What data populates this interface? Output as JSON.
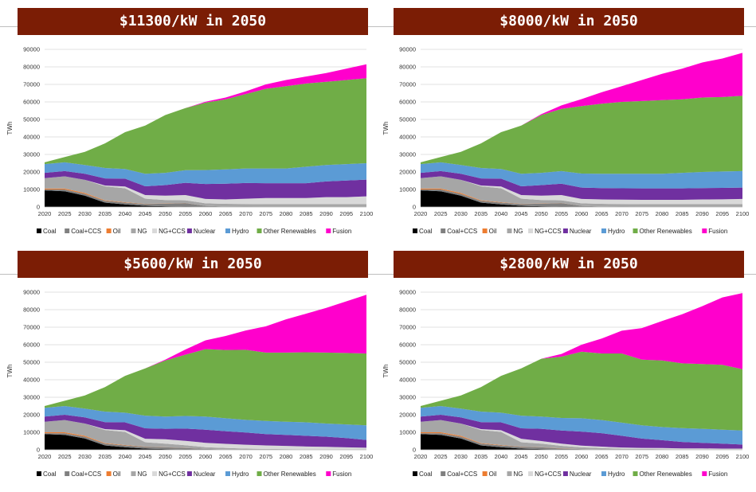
{
  "chart_data": [
    {
      "type": "area",
      "stacked": true,
      "title": "$11300/kW in 2050",
      "ylabel": "TWh",
      "ylim": [
        0,
        90000
      ],
      "yticks": [
        0,
        10000,
        20000,
        30000,
        40000,
        50000,
        60000,
        70000,
        80000,
        90000
      ],
      "x": [
        2020,
        2025,
        2030,
        2035,
        2040,
        2045,
        2050,
        2055,
        2060,
        2065,
        2070,
        2075,
        2080,
        2085,
        2090,
        2095,
        2100
      ],
      "legend_position": "bottom",
      "series": [
        {
          "name": "Coal",
          "color": "#000000",
          "values": [
            9500,
            9000,
            6500,
            2500,
            1500,
            700,
            400,
            200,
            100,
            0,
            0,
            0,
            0,
            0,
            0,
            0,
            0
          ]
        },
        {
          "name": "Coal+CCS",
          "color": "#808080",
          "values": [
            500,
            1000,
            1000,
            1000,
            1000,
            1000,
            1500,
            2000,
            500,
            300,
            200,
            100,
            100,
            100,
            100,
            100,
            100
          ]
        },
        {
          "name": "Oil",
          "color": "#ed7d31",
          "values": [
            500,
            500,
            500,
            300,
            200,
            100,
            100,
            100,
            0,
            0,
            0,
            0,
            0,
            0,
            0,
            0,
            0
          ]
        },
        {
          "name": "NG",
          "color": "#a6a6a6",
          "values": [
            6000,
            7000,
            7500,
            8000,
            8000,
            3000,
            2000,
            1500,
            1500,
            1500,
            1500,
            1500,
            1500,
            1500,
            1500,
            1500,
            1500
          ]
        },
        {
          "name": "NG+CCS",
          "color": "#d9d9d9",
          "values": [
            0,
            0,
            0,
            500,
            1000,
            2000,
            2500,
            3000,
            2500,
            2500,
            3000,
            3500,
            3500,
            3500,
            4000,
            4000,
            4500
          ]
        },
        {
          "name": "Nuclear",
          "color": "#7030a0",
          "values": [
            3000,
            3000,
            3500,
            4000,
            4500,
            5000,
            6000,
            7000,
            8500,
            9000,
            9000,
            8500,
            8500,
            8500,
            9000,
            9500,
            9500
          ]
        },
        {
          "name": "Hydro",
          "color": "#5b9bd5",
          "values": [
            5000,
            5000,
            5000,
            6000,
            5500,
            7200,
            7000,
            7200,
            8000,
            8200,
            8300,
            8400,
            8400,
            9400,
            9400,
            9400,
            9400
          ]
        },
        {
          "name": "Other Renewables",
          "color": "#70ad47",
          "values": [
            1000,
            3000,
            7500,
            14000,
            21000,
            27500,
            33000,
            35500,
            38500,
            40000,
            42500,
            45500,
            47000,
            47500,
            47500,
            48000,
            48500
          ]
        },
        {
          "name": "Fusion",
          "color": "#ff00cc",
          "values": [
            0,
            0,
            0,
            0,
            0,
            0,
            0,
            0,
            500,
            1000,
            1500,
            2500,
            3500,
            4000,
            5000,
            6500,
            8000
          ]
        }
      ]
    },
    {
      "type": "area",
      "stacked": true,
      "title": "$8000/kW in 2050",
      "ylabel": "TWh",
      "ylim": [
        0,
        90000
      ],
      "yticks": [
        0,
        10000,
        20000,
        30000,
        40000,
        50000,
        60000,
        70000,
        80000,
        90000
      ],
      "x": [
        2020,
        2025,
        2030,
        2035,
        2040,
        2045,
        2050,
        2055,
        2060,
        2065,
        2070,
        2075,
        2080,
        2085,
        2090,
        2095,
        2100
      ],
      "legend_position": "bottom",
      "series": [
        {
          "name": "Coal",
          "color": "#000000",
          "values": [
            9500,
            9000,
            6500,
            2500,
            1500,
            700,
            400,
            200,
            100,
            0,
            0,
            0,
            0,
            0,
            0,
            0,
            0
          ]
        },
        {
          "name": "Coal+CCS",
          "color": "#808080",
          "values": [
            500,
            1000,
            1000,
            1000,
            1000,
            1000,
            1500,
            2000,
            500,
            300,
            200,
            100,
            100,
            100,
            100,
            100,
            100
          ]
        },
        {
          "name": "Oil",
          "color": "#ed7d31",
          "values": [
            500,
            500,
            500,
            300,
            200,
            100,
            100,
            100,
            0,
            0,
            0,
            0,
            0,
            0,
            0,
            0,
            0
          ]
        },
        {
          "name": "NG",
          "color": "#a6a6a6",
          "values": [
            6000,
            7000,
            7500,
            8000,
            8000,
            3000,
            2000,
            1500,
            1500,
            1500,
            1500,
            1500,
            1500,
            1500,
            1500,
            1500,
            1500
          ]
        },
        {
          "name": "NG+CCS",
          "color": "#d9d9d9",
          "values": [
            0,
            0,
            0,
            500,
            1000,
            2000,
            2500,
            3000,
            2500,
            2500,
            2500,
            2500,
            2500,
            2500,
            2700,
            2800,
            3000
          ]
        },
        {
          "name": "Nuclear",
          "color": "#7030a0",
          "values": [
            3000,
            3000,
            3500,
            4000,
            4500,
            5000,
            6000,
            6500,
            6500,
            6500,
            6500,
            6500,
            6500,
            6500,
            6500,
            6500,
            6500
          ]
        },
        {
          "name": "Hydro",
          "color": "#5b9bd5",
          "values": [
            5000,
            5000,
            5000,
            6000,
            5500,
            7200,
            7000,
            7200,
            8000,
            8200,
            8300,
            8400,
            8400,
            8900,
            9200,
            9400,
            9400
          ]
        },
        {
          "name": "Other Renewables",
          "color": "#70ad47",
          "values": [
            1000,
            3000,
            7500,
            14000,
            21000,
            27500,
            33000,
            35500,
            38500,
            40000,
            41000,
            41500,
            42000,
            42000,
            42500,
            42500,
            43000
          ]
        },
        {
          "name": "Fusion",
          "color": "#ff00cc",
          "values": [
            0,
            0,
            0,
            0,
            0,
            0,
            500,
            2000,
            4000,
            6500,
            9000,
            12000,
            15000,
            17500,
            20000,
            22000,
            24500
          ]
        }
      ]
    },
    {
      "type": "area",
      "stacked": true,
      "title": "$5600/kW in 2050",
      "ylabel": "TWh",
      "ylim": [
        0,
        90000
      ],
      "yticks": [
        0,
        10000,
        20000,
        30000,
        40000,
        50000,
        60000,
        70000,
        80000,
        90000
      ],
      "x": [
        2020,
        2025,
        2030,
        2035,
        2040,
        2045,
        2050,
        2055,
        2060,
        2065,
        2070,
        2075,
        2080,
        2085,
        2090,
        2095,
        2100
      ],
      "legend_position": "bottom",
      "series": [
        {
          "name": "Coal",
          "color": "#000000",
          "values": [
            9000,
            8500,
            6500,
            2500,
            1500,
            700,
            400,
            200,
            100,
            0,
            0,
            0,
            0,
            0,
            0,
            0,
            0
          ]
        },
        {
          "name": "Coal+CCS",
          "color": "#808080",
          "values": [
            500,
            1000,
            1000,
            1000,
            1000,
            1000,
            1000,
            800,
            400,
            300,
            200,
            100,
            100,
            100,
            100,
            100,
            100
          ]
        },
        {
          "name": "Oil",
          "color": "#ed7d31",
          "values": [
            500,
            500,
            500,
            300,
            200,
            100,
            100,
            100,
            0,
            0,
            0,
            0,
            0,
            0,
            0,
            0,
            0
          ]
        },
        {
          "name": "NG",
          "color": "#a6a6a6",
          "values": [
            6000,
            7000,
            7000,
            7500,
            7500,
            2500,
            2000,
            1500,
            1000,
            800,
            500,
            400,
            300,
            200,
            200,
            100,
            100
          ]
        },
        {
          "name": "NG+CCS",
          "color": "#d9d9d9",
          "values": [
            0,
            0,
            0,
            500,
            1000,
            2000,
            2500,
            2500,
            2500,
            2300,
            2200,
            2000,
            1800,
            1600,
            1400,
            1200,
            1000
          ]
        },
        {
          "name": "Nuclear",
          "color": "#7030a0",
          "values": [
            3000,
            3000,
            3500,
            4000,
            4500,
            6000,
            6000,
            7000,
            7500,
            7200,
            7000,
            6500,
            6300,
            6100,
            5800,
            5300,
            4400
          ]
        },
        {
          "name": "Hydro",
          "color": "#5b9bd5",
          "values": [
            5000,
            5000,
            5000,
            6000,
            5500,
            7200,
            7000,
            7200,
            7500,
            7400,
            7200,
            7500,
            7500,
            7700,
            7500,
            7800,
            8400
          ]
        },
        {
          "name": "Other Renewables",
          "color": "#70ad47",
          "values": [
            1000,
            3000,
            7500,
            14000,
            21000,
            27000,
            32000,
            35000,
            38500,
            39000,
            40000,
            39000,
            39500,
            40000,
            40500,
            40800,
            41000
          ]
        },
        {
          "name": "Fusion",
          "color": "#ff00cc",
          "values": [
            0,
            0,
            0,
            0,
            0,
            0,
            500,
            3000,
            5000,
            8000,
            11000,
            15000,
            19000,
            22000,
            25500,
            29500,
            33500
          ]
        }
      ]
    },
    {
      "type": "area",
      "stacked": true,
      "title": "$2800/kW in 2050",
      "ylabel": "TWh",
      "ylim": [
        0,
        90000
      ],
      "yticks": [
        0,
        10000,
        20000,
        30000,
        40000,
        50000,
        60000,
        70000,
        80000,
        90000
      ],
      "x": [
        2020,
        2025,
        2030,
        2035,
        2040,
        2045,
        2050,
        2055,
        2060,
        2065,
        2070,
        2075,
        2080,
        2085,
        2090,
        2095,
        2100
      ],
      "legend_position": "bottom",
      "series": [
        {
          "name": "Coal",
          "color": "#000000",
          "values": [
            9000,
            8500,
            6500,
            2500,
            1500,
            700,
            400,
            200,
            100,
            0,
            0,
            0,
            0,
            0,
            0,
            0,
            0
          ]
        },
        {
          "name": "Coal+CCS",
          "color": "#808080",
          "values": [
            500,
            1000,
            1000,
            1000,
            1000,
            1000,
            1000,
            500,
            300,
            200,
            100,
            100,
            100,
            100,
            100,
            100,
            100
          ]
        },
        {
          "name": "Oil",
          "color": "#ed7d31",
          "values": [
            500,
            500,
            500,
            300,
            200,
            100,
            100,
            100,
            0,
            0,
            0,
            0,
            0,
            0,
            0,
            0,
            0
          ]
        },
        {
          "name": "NG",
          "color": "#a6a6a6",
          "values": [
            6000,
            7000,
            7000,
            7500,
            7500,
            2500,
            2000,
            1500,
            1000,
            800,
            500,
            400,
            300,
            200,
            200,
            100,
            100
          ]
        },
        {
          "name": "NG+CCS",
          "color": "#d9d9d9",
          "values": [
            0,
            0,
            0,
            500,
            1000,
            2000,
            1500,
            1200,
            1000,
            800,
            700,
            600,
            600,
            500,
            500,
            500,
            500
          ]
        },
        {
          "name": "Nuclear",
          "color": "#7030a0",
          "values": [
            3000,
            3000,
            3500,
            4000,
            4500,
            6000,
            7000,
            7500,
            8000,
            7700,
            6700,
            5300,
            4500,
            3700,
            3200,
            2800,
            2300
          ]
        },
        {
          "name": "Hydro",
          "color": "#5b9bd5",
          "values": [
            5000,
            5000,
            5000,
            6000,
            5500,
            7200,
            7000,
            7200,
            7600,
            7500,
            7500,
            7600,
            7500,
            7900,
            8000,
            8000,
            8000
          ]
        },
        {
          "name": "Other Renewables",
          "color": "#70ad47",
          "values": [
            1000,
            3000,
            7500,
            14000,
            21000,
            27000,
            33000,
            35000,
            38000,
            38000,
            39500,
            37500,
            38000,
            37000,
            37000,
            37000,
            35000
          ]
        },
        {
          "name": "Fusion",
          "color": "#ff00cc",
          "values": [
            0,
            0,
            0,
            0,
            0,
            0,
            0,
            1500,
            4000,
            8500,
            13000,
            18000,
            22500,
            28000,
            33000,
            38500,
            43500
          ]
        }
      ]
    }
  ]
}
